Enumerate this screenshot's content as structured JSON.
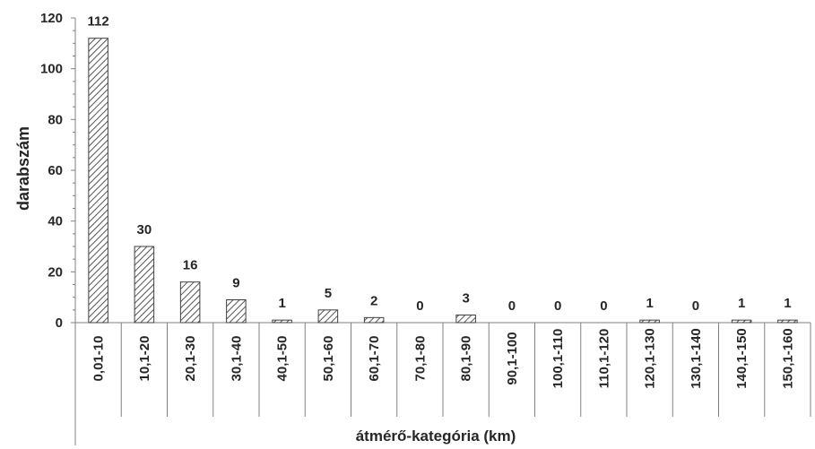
{
  "chart_data": {
    "type": "bar",
    "categories": [
      "0,01-10",
      "10,1-20",
      "20,1-30",
      "30,1-40",
      "40,1-50",
      "50,1-60",
      "60,1-70",
      "70,1-80",
      "80,1-90",
      "90,1-100",
      "100,1-110",
      "110,1-120",
      "120,1-130",
      "130,1-140",
      "140,1-150",
      "150,1-160"
    ],
    "values": [
      112,
      30,
      16,
      9,
      1,
      5,
      2,
      0,
      3,
      0,
      0,
      0,
      1,
      0,
      1,
      1
    ],
    "data_labels": [
      "112",
      "30",
      "16",
      "9",
      "1",
      "5",
      "2",
      "0",
      "3",
      "0",
      "0",
      "0",
      "1",
      "0",
      "1",
      "1"
    ],
    "xlabel": "átmérő-kategória (km)",
    "ylabel": "darabszám",
    "ylim": [
      0,
      120
    ],
    "yticks": [
      "0",
      "20",
      "40",
      "60",
      "80",
      "100",
      "120"
    ],
    "bar_fill": "diagonal hatch",
    "colors": {
      "bar_stroke": "#404040",
      "hatch": "#404040",
      "axis": "#808080",
      "text": "#262626"
    },
    "grid": false,
    "legend": "none"
  }
}
